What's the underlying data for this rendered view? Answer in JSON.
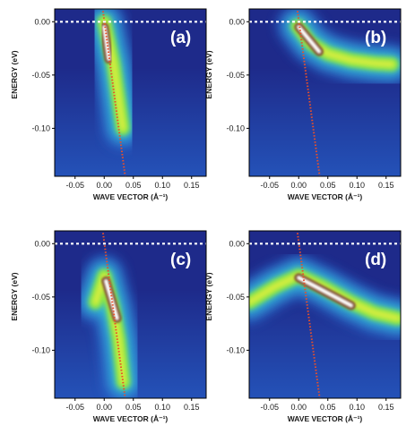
{
  "chart_data": [
    {
      "type": "heatmap",
      "panel_label": "(a)",
      "xlabel": "WAVE VECTOR (Å⁻¹)",
      "ylabel": "ENERGY (eV)",
      "xlim": [
        -0.085,
        0.175
      ],
      "ylim": [
        -0.145,
        0.012
      ],
      "x_ticks": [
        "-0.05",
        "0.00",
        "0.05",
        "0.10",
        "0.15"
      ],
      "y_ticks": [
        "0.00",
        "-0.05",
        "-0.10"
      ],
      "fermi_level_eV": 0.0,
      "dispersion_line": {
        "x": [
          -0.002,
          0.036
        ],
        "y": [
          0.01,
          -0.145
        ]
      },
      "intensity_band": {
        "x": [
          0.0,
          0.008,
          0.016,
          0.024,
          0.032
        ],
        "y": [
          0.0,
          -0.02,
          -0.04,
          -0.07,
          -0.1
        ]
      },
      "peak": {
        "x": [
          0.0,
          0.008
        ],
        "y": [
          -0.005,
          -0.035
        ]
      }
    },
    {
      "type": "heatmap",
      "panel_label": "(b)",
      "xlabel": "WAVE VECTOR (Å⁻¹)",
      "ylabel": "ENERGY (eV)",
      "xlim": [
        -0.085,
        0.175
      ],
      "ylim": [
        -0.145,
        0.012
      ],
      "x_ticks": [
        "-0.05",
        "0.00",
        "0.05",
        "0.10",
        "0.15"
      ],
      "y_ticks": [
        "0.00",
        "-0.05",
        "-0.10"
      ],
      "fermi_level_eV": 0.0,
      "dispersion_line": {
        "x": [
          -0.002,
          0.036
        ],
        "y": [
          0.01,
          -0.145
        ]
      },
      "intensity_band": {
        "x": [
          -0.002,
          0.02,
          0.05,
          0.09,
          0.13,
          0.16
        ],
        "y": [
          -0.004,
          -0.02,
          -0.03,
          -0.036,
          -0.039,
          -0.04
        ]
      },
      "peak": {
        "x": [
          0.0,
          0.035
        ],
        "y": [
          -0.005,
          -0.028
        ]
      }
    },
    {
      "type": "heatmap",
      "panel_label": "(c)",
      "xlabel": "WAVE VECTOR (Å⁻¹)",
      "ylabel": "ENERGY (eV)",
      "xlim": [
        -0.085,
        0.175
      ],
      "ylim": [
        -0.145,
        0.012
      ],
      "x_ticks": [
        "-0.05",
        "0.00",
        "0.05",
        "0.10",
        "0.15"
      ],
      "y_ticks": [
        "0.00",
        "-0.05",
        "-0.10"
      ],
      "fermi_level_eV": 0.0,
      "dispersion_line": {
        "x": [
          -0.002,
          0.036
        ],
        "y": [
          0.01,
          -0.145
        ]
      },
      "intensity_band": {
        "x": [
          -0.015,
          0.0,
          0.015,
          0.025,
          0.033
        ],
        "y": [
          -0.055,
          -0.03,
          -0.06,
          -0.09,
          -0.13
        ]
      },
      "peak": {
        "x": [
          0.003,
          0.022
        ],
        "y": [
          -0.035,
          -0.07
        ]
      }
    },
    {
      "type": "heatmap",
      "panel_label": "(d)",
      "xlabel": "WAVE VECTOR (Å⁻¹)",
      "ylabel": "ENERGY (eV)",
      "xlim": [
        -0.085,
        0.175
      ],
      "ylim": [
        -0.145,
        0.012
      ],
      "x_ticks": [
        "-0.05",
        "0.00",
        "0.05",
        "0.10",
        "0.15"
      ],
      "y_ticks": [
        "0.00",
        "-0.05",
        "-0.10"
      ],
      "fermi_level_eV": 0.0,
      "dispersion_line": {
        "x": [
          -0.002,
          0.036
        ],
        "y": [
          0.01,
          -0.145
        ]
      },
      "intensity_band": {
        "x": [
          -0.085,
          -0.04,
          0.0,
          0.04,
          0.09,
          0.13,
          0.17
        ],
        "y": [
          -0.055,
          -0.04,
          -0.03,
          -0.04,
          -0.055,
          -0.065,
          -0.07
        ]
      },
      "peak": {
        "x": [
          0.0,
          0.09
        ],
        "y": [
          -0.032,
          -0.058
        ]
      }
    }
  ],
  "colors": {
    "background_low": "#1e2a8a",
    "background_mid": "#2e6fd0",
    "band_cyan": "#33c8d8",
    "band_green": "#8be83a",
    "band_yellow": "#f0f040",
    "peak_brown": "#7a4a30",
    "peak_white": "#ffffff",
    "dispersion_line": "#e8502a",
    "fermi_line": "#ffffff"
  }
}
